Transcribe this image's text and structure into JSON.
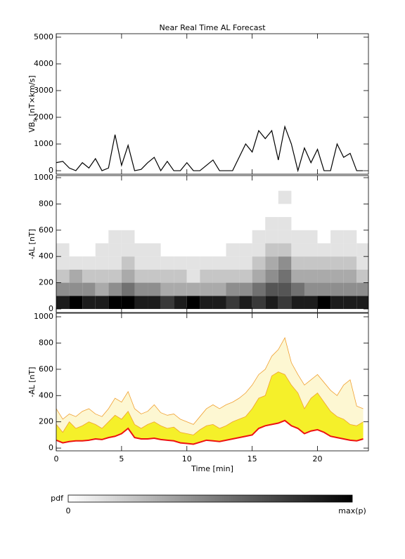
{
  "chart_data": [
    {
      "type": "line",
      "title": "Near Real Time AL Forecast",
      "ylabel": [
        "VB",
        "s",
        "[nT×km/s]"
      ],
      "x": [
        0,
        0.5,
        1,
        1.5,
        2,
        2.5,
        3,
        3.5,
        4,
        4.5,
        5,
        5.5,
        6,
        6.5,
        7,
        7.5,
        8,
        8.5,
        9,
        9.5,
        10,
        10.5,
        11,
        11.5,
        12,
        12.5,
        13,
        13.5,
        14,
        14.5,
        15,
        15.5,
        16,
        16.5,
        17,
        17.5,
        18,
        18.5,
        19,
        19.5,
        20,
        20.5,
        21,
        21.5,
        22,
        22.5,
        23,
        23.5
      ],
      "series": [
        {
          "color": "#000000",
          "values": [
            300,
            350,
            100,
            0,
            300,
            100,
            450,
            0,
            100,
            1350,
            200,
            950,
            0,
            50,
            300,
            500,
            0,
            350,
            0,
            0,
            300,
            0,
            0,
            200,
            400,
            0,
            0,
            0,
            500,
            1000,
            700,
            1500,
            1200,
            1500,
            400,
            1650,
            1000,
            0,
            850,
            300,
            800,
            0,
            0,
            1000,
            500,
            650,
            0,
            0
          ]
        }
      ],
      "xlim": [
        0,
        23.9
      ],
      "xticks": [
        0,
        5,
        10,
        15,
        20
      ],
      "ylim": [
        -130,
        5130
      ],
      "yticks": [
        0,
        1000,
        2000,
        3000,
        4000,
        5000
      ]
    },
    {
      "type": "heatmap",
      "ylabel": "-AL [nT]",
      "xbins": [
        0,
        1,
        2,
        3,
        4,
        5,
        6,
        7,
        8,
        9,
        10,
        11,
        12,
        13,
        14,
        15,
        16,
        17,
        18,
        19,
        20,
        21,
        22,
        23,
        24
      ],
      "ybins": [
        0,
        100,
        200,
        300,
        400,
        500,
        600,
        700,
        800,
        900,
        1000
      ],
      "zmax": 9,
      "z": [
        [
          8,
          4,
          2,
          1,
          1,
          0,
          0,
          0,
          0,
          0
        ],
        [
          9,
          4,
          3,
          1,
          0,
          0,
          0,
          0,
          0,
          0
        ],
        [
          8,
          4,
          2,
          1,
          0,
          0,
          0,
          0,
          0,
          0
        ],
        [
          8,
          3,
          2,
          1,
          1,
          0,
          0,
          0,
          0,
          0
        ],
        [
          9,
          4,
          2,
          1,
          1,
          1,
          0,
          0,
          0,
          0
        ],
        [
          9,
          5,
          3,
          2,
          1,
          1,
          0,
          0,
          0,
          0
        ],
        [
          8,
          4,
          2,
          1,
          1,
          0,
          0,
          0,
          0,
          0
        ],
        [
          8,
          4,
          2,
          1,
          1,
          0,
          0,
          0,
          0,
          0
        ],
        [
          7,
          3,
          2,
          1,
          0,
          0,
          0,
          0,
          0,
          0
        ],
        [
          8,
          3,
          2,
          1,
          0,
          0,
          0,
          0,
          0,
          0
        ],
        [
          9,
          3,
          1,
          1,
          0,
          0,
          0,
          0,
          0,
          0
        ],
        [
          8,
          3,
          2,
          1,
          0,
          0,
          0,
          0,
          0,
          0
        ],
        [
          8,
          3,
          2,
          1,
          0,
          0,
          0,
          0,
          0,
          0
        ],
        [
          7,
          4,
          2,
          1,
          1,
          0,
          0,
          0,
          0,
          0
        ],
        [
          8,
          4,
          2,
          1,
          1,
          0,
          0,
          0,
          0,
          0
        ],
        [
          7,
          5,
          3,
          2,
          1,
          1,
          0,
          0,
          0,
          0
        ],
        [
          8,
          6,
          4,
          3,
          2,
          1,
          1,
          0,
          0,
          0
        ],
        [
          7,
          6,
          5,
          4,
          2,
          1,
          1,
          0,
          1,
          0
        ],
        [
          8,
          5,
          3,
          2,
          1,
          1,
          0,
          0,
          0,
          0
        ],
        [
          8,
          4,
          3,
          2,
          1,
          1,
          0,
          0,
          0,
          0
        ],
        [
          9,
          4,
          3,
          2,
          1,
          0,
          0,
          0,
          0,
          0
        ],
        [
          8,
          4,
          3,
          2,
          1,
          1,
          0,
          0,
          0,
          0
        ],
        [
          8,
          4,
          3,
          2,
          1,
          1,
          0,
          0,
          0,
          0
        ],
        [
          8,
          4,
          2,
          1,
          1,
          0,
          0,
          0,
          0,
          0
        ]
      ],
      "colorbar": {
        "label": "pdf",
        "min_label": "0",
        "max_label": "max(p)"
      },
      "xlim": [
        0,
        23.9
      ],
      "xticks": [
        0,
        5,
        10,
        15,
        20
      ],
      "ylim": [
        -27,
        1016
      ],
      "yticks": [
        0,
        200,
        400,
        600,
        800,
        1000
      ]
    },
    {
      "type": "band",
      "ylabel": "-AL [nT]",
      "xlabel": "Time [min]",
      "x": [
        0,
        0.5,
        1,
        1.5,
        2,
        2.5,
        3,
        3.5,
        4,
        4.5,
        5,
        5.5,
        6,
        6.5,
        7,
        7.5,
        8,
        8.5,
        9,
        9.5,
        10,
        10.5,
        11,
        11.5,
        12,
        12.5,
        13,
        13.5,
        14,
        14.5,
        15,
        15.5,
        16,
        16.5,
        17,
        17.5,
        18,
        18.5,
        19,
        19.5,
        20,
        20.5,
        21,
        21.5,
        22,
        22.5,
        23,
        23.5
      ],
      "series": [
        {
          "color": "#ee1111",
          "values": [
            60,
            40,
            50,
            55,
            55,
            60,
            70,
            65,
            80,
            90,
            110,
            150,
            80,
            70,
            70,
            75,
            65,
            60,
            55,
            40,
            35,
            30,
            45,
            60,
            55,
            50,
            60,
            70,
            80,
            90,
            100,
            150,
            170,
            180,
            190,
            210,
            170,
            150,
            110,
            130,
            140,
            120,
            90,
            80,
            70,
            60,
            55,
            70
          ]
        },
        {
          "color": "#f5f02a",
          "values": [
            180,
            120,
            200,
            150,
            170,
            200,
            180,
            150,
            200,
            250,
            220,
            280,
            180,
            150,
            180,
            200,
            170,
            150,
            160,
            120,
            110,
            100,
            140,
            170,
            180,
            150,
            170,
            200,
            220,
            240,
            300,
            380,
            400,
            550,
            580,
            560,
            480,
            420,
            300,
            380,
            420,
            350,
            280,
            240,
            220,
            180,
            170,
            200
          ]
        },
        {
          "color": "#fdf7d2",
          "values": [
            300,
            220,
            260,
            240,
            280,
            300,
            260,
            240,
            300,
            380,
            350,
            430,
            300,
            260,
            280,
            330,
            270,
            250,
            260,
            220,
            200,
            180,
            240,
            300,
            330,
            300,
            330,
            350,
            380,
            420,
            480,
            560,
            600,
            700,
            750,
            840,
            650,
            560,
            480,
            520,
            560,
            500,
            440,
            400,
            480,
            520,
            320,
            300
          ]
        }
      ],
      "xlim": [
        0,
        23.9
      ],
      "xticks": [
        0,
        5,
        10,
        15,
        20
      ],
      "ylim": [
        -21,
        1027
      ],
      "yticks": [
        0,
        200,
        400,
        600,
        800,
        1000
      ]
    }
  ]
}
